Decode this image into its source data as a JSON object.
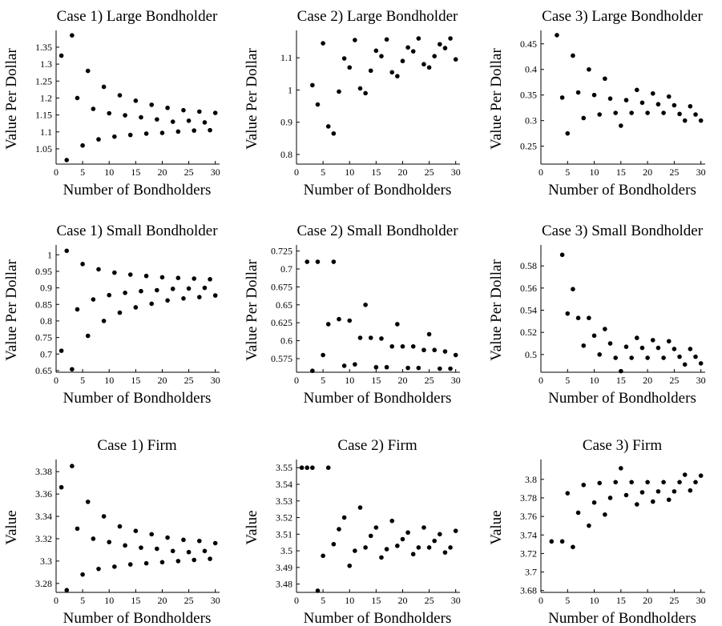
{
  "chart_data": [
    {
      "type": "scatter",
      "title": "Case 1) Large Bondholder",
      "xlabel": "Number of Bondholders",
      "ylabel": "Value Per Dollar",
      "xlim": [
        0,
        30.5
      ],
      "ylim": [
        1.005,
        1.39
      ],
      "xticks": [
        0,
        5,
        10,
        15,
        20,
        25,
        30
      ],
      "yticks": [
        1.05,
        1.1,
        1.15,
        1.2,
        1.25,
        1.3,
        1.35
      ],
      "ytick_labels": [
        "1.05",
        "1.1",
        "1.15",
        "1.2",
        "1.25",
        "1.3",
        "1.35"
      ],
      "points": [
        [
          1,
          1.325
        ],
        [
          2,
          1.017
        ],
        [
          3,
          1.385
        ],
        [
          4,
          1.2
        ],
        [
          5,
          1.06
        ],
        [
          6,
          1.28
        ],
        [
          7,
          1.168
        ],
        [
          8,
          1.078
        ],
        [
          9,
          1.233
        ],
        [
          10,
          1.155
        ],
        [
          11,
          1.086
        ],
        [
          12,
          1.208
        ],
        [
          13,
          1.149
        ],
        [
          14,
          1.091
        ],
        [
          15,
          1.192
        ],
        [
          16,
          1.143
        ],
        [
          17,
          1.095
        ],
        [
          18,
          1.18
        ],
        [
          19,
          1.137
        ],
        [
          20,
          1.097
        ],
        [
          21,
          1.171
        ],
        [
          22,
          1.13
        ],
        [
          23,
          1.101
        ],
        [
          24,
          1.164
        ],
        [
          25,
          1.133
        ],
        [
          26,
          1.104
        ],
        [
          27,
          1.16
        ],
        [
          28,
          1.128
        ],
        [
          29,
          1.105
        ],
        [
          30,
          1.156
        ]
      ]
    },
    {
      "type": "scatter",
      "title": "Case 2) Large Bondholder",
      "xlabel": "Number of Bondholders",
      "ylabel": "Value Per Dollar",
      "xlim": [
        0,
        30.5
      ],
      "ylim": [
        0.77,
        1.175
      ],
      "xticks": [
        0,
        5,
        10,
        15,
        20,
        25,
        30
      ],
      "yticks": [
        0.8,
        0.9,
        1.0,
        1.1
      ],
      "ytick_labels": [
        "0.8",
        "0.9",
        "1",
        "1.1"
      ],
      "points": [
        [
          3,
          1.015
        ],
        [
          4,
          0.955
        ],
        [
          5,
          1.145
        ],
        [
          6,
          0.887
        ],
        [
          7,
          0.865
        ],
        [
          8,
          0.995
        ],
        [
          9,
          1.098
        ],
        [
          10,
          1.07
        ],
        [
          11,
          1.155
        ],
        [
          12,
          1.005
        ],
        [
          13,
          0.99
        ],
        [
          14,
          1.06
        ],
        [
          15,
          1.122
        ],
        [
          16,
          1.105
        ],
        [
          17,
          1.157
        ],
        [
          18,
          1.055
        ],
        [
          19,
          1.043
        ],
        [
          20,
          1.09
        ],
        [
          21,
          1.132
        ],
        [
          22,
          1.12
        ],
        [
          23,
          1.16
        ],
        [
          24,
          1.08
        ],
        [
          25,
          1.07
        ],
        [
          26,
          1.105
        ],
        [
          27,
          1.142
        ],
        [
          28,
          1.13
        ],
        [
          29,
          1.16
        ],
        [
          30,
          1.095
        ]
      ]
    },
    {
      "type": "scatter",
      "title": "Case 3) Large Bondholder",
      "xlabel": "Number of Bondholders",
      "ylabel": "Value Per Dollar",
      "xlim": [
        0,
        30.5
      ],
      "ylim": [
        0.215,
        0.47
      ],
      "xticks": [
        0,
        5,
        10,
        15,
        20,
        25,
        30
      ],
      "yticks": [
        0.25,
        0.3,
        0.35,
        0.4,
        0.45
      ],
      "ytick_labels": [
        "0.25",
        "0.3",
        "0.35",
        "0.4",
        "0.45"
      ],
      "points": [
        [
          3,
          0.467
        ],
        [
          4,
          0.345
        ],
        [
          5,
          0.275
        ],
        [
          6,
          0.427
        ],
        [
          7,
          0.355
        ],
        [
          8,
          0.305
        ],
        [
          9,
          0.4
        ],
        [
          10,
          0.35
        ],
        [
          11,
          0.312
        ],
        [
          12,
          0.382
        ],
        [
          13,
          0.343
        ],
        [
          14,
          0.315
        ],
        [
          15,
          0.29
        ],
        [
          16,
          0.34
        ],
        [
          17,
          0.315
        ],
        [
          18,
          0.36
        ],
        [
          19,
          0.335
        ],
        [
          20,
          0.315
        ],
        [
          21,
          0.353
        ],
        [
          22,
          0.332
        ],
        [
          23,
          0.315
        ],
        [
          24,
          0.347
        ],
        [
          25,
          0.33
        ],
        [
          26,
          0.313
        ],
        [
          27,
          0.3
        ],
        [
          28,
          0.328
        ],
        [
          29,
          0.312
        ],
        [
          30,
          0.3
        ]
      ]
    },
    {
      "type": "scatter",
      "title": "Case 1) Small Bondholder",
      "xlabel": "Number of Bondholders",
      "ylabel": "Value Per Dollar",
      "xlim": [
        0,
        30.5
      ],
      "ylim": [
        0.645,
        1.02
      ],
      "xticks": [
        0,
        5,
        10,
        15,
        20,
        25,
        30
      ],
      "yticks": [
        0.65,
        0.7,
        0.75,
        0.8,
        0.85,
        0.9,
        0.95,
        1.0
      ],
      "ytick_labels": [
        "0.65",
        "0.7",
        "0.75",
        "0.8",
        "0.85",
        "0.9",
        "0.95",
        "1"
      ],
      "points": [
        [
          1,
          0.71
        ],
        [
          2,
          1.012
        ],
        [
          3,
          0.654
        ],
        [
          4,
          0.835
        ],
        [
          5,
          0.972
        ],
        [
          6,
          0.755
        ],
        [
          7,
          0.865
        ],
        [
          8,
          0.956
        ],
        [
          9,
          0.8
        ],
        [
          10,
          0.878
        ],
        [
          11,
          0.946
        ],
        [
          12,
          0.825
        ],
        [
          13,
          0.885
        ],
        [
          14,
          0.94
        ],
        [
          15,
          0.841
        ],
        [
          16,
          0.89
        ],
        [
          17,
          0.936
        ],
        [
          18,
          0.852
        ],
        [
          19,
          0.893
        ],
        [
          20,
          0.932
        ],
        [
          21,
          0.862
        ],
        [
          22,
          0.897
        ],
        [
          23,
          0.93
        ],
        [
          24,
          0.868
        ],
        [
          25,
          0.898
        ],
        [
          26,
          0.928
        ],
        [
          27,
          0.872
        ],
        [
          28,
          0.9
        ],
        [
          29,
          0.926
        ],
        [
          30,
          0.877
        ]
      ]
    },
    {
      "type": "scatter",
      "title": "Case 2) Small Bondholder",
      "xlabel": "Number of Bondholders",
      "ylabel": "Value Per Dollar",
      "xlim": [
        0,
        30.5
      ],
      "ylim": [
        0.556,
        0.729
      ],
      "xticks": [
        0,
        5,
        10,
        15,
        20,
        25,
        30
      ],
      "yticks": [
        0.575,
        0.6,
        0.625,
        0.65,
        0.675,
        0.7,
        0.725
      ],
      "ytick_labels": [
        "0.575",
        "0.6",
        "0.625",
        "0.65",
        "0.675",
        "0.7",
        "0.725"
      ],
      "points": [
        [
          2,
          0.71
        ],
        [
          3,
          0.558
        ],
        [
          4,
          0.71
        ],
        [
          5,
          0.58
        ],
        [
          6,
          0.623
        ],
        [
          7,
          0.71
        ],
        [
          8,
          0.63
        ],
        [
          9,
          0.565
        ],
        [
          10,
          0.628
        ],
        [
          11,
          0.567
        ],
        [
          12,
          0.604
        ],
        [
          13,
          0.65
        ],
        [
          14,
          0.604
        ],
        [
          15,
          0.563
        ],
        [
          16,
          0.603
        ],
        [
          17,
          0.563
        ],
        [
          18,
          0.592
        ],
        [
          19,
          0.623
        ],
        [
          20,
          0.592
        ],
        [
          21,
          0.562
        ],
        [
          22,
          0.592
        ],
        [
          23,
          0.562
        ],
        [
          24,
          0.587
        ],
        [
          25,
          0.609
        ],
        [
          26,
          0.587
        ],
        [
          27,
          0.561
        ],
        [
          28,
          0.585
        ],
        [
          29,
          0.561
        ],
        [
          30,
          0.58
        ]
      ]
    },
    {
      "type": "scatter",
      "title": "Case 3) Small Bondholder",
      "xlabel": "Number of Bondholders",
      "ylabel": "Value Per Dollar",
      "xlim": [
        0,
        30.5
      ],
      "ylim": [
        0.484,
        0.596
      ],
      "xticks": [
        0,
        5,
        10,
        15,
        20,
        25,
        30
      ],
      "yticks": [
        0.5,
        0.52,
        0.54,
        0.56,
        0.58
      ],
      "ytick_labels": [
        "0.5",
        "0.52",
        "0.54",
        "0.56",
        "0.58"
      ],
      "points": [
        [
          4,
          0.59
        ],
        [
          5,
          0.537
        ],
        [
          6,
          0.559
        ],
        [
          7,
          0.533
        ],
        [
          8,
          0.508
        ],
        [
          9,
          0.533
        ],
        [
          10,
          0.517
        ],
        [
          11,
          0.5
        ],
        [
          12,
          0.523
        ],
        [
          13,
          0.51
        ],
        [
          14,
          0.497
        ],
        [
          15,
          0.485
        ],
        [
          16,
          0.507
        ],
        [
          17,
          0.497
        ],
        [
          18,
          0.515
        ],
        [
          19,
          0.506
        ],
        [
          20,
          0.497
        ],
        [
          21,
          0.513
        ],
        [
          22,
          0.506
        ],
        [
          23,
          0.497
        ],
        [
          24,
          0.512
        ],
        [
          25,
          0.505
        ],
        [
          26,
          0.498
        ],
        [
          27,
          0.491
        ],
        [
          28,
          0.505
        ],
        [
          29,
          0.498
        ],
        [
          30,
          0.492
        ]
      ]
    },
    {
      "type": "scatter",
      "title": "Case 1) Firm",
      "xlabel": "Number of Bondholders",
      "ylabel": "Value",
      "xlim": [
        0,
        30.5
      ],
      "ylim": [
        3.272,
        3.388
      ],
      "xticks": [
        0,
        5,
        10,
        15,
        20,
        25,
        30
      ],
      "yticks": [
        3.28,
        3.3,
        3.32,
        3.34,
        3.36,
        3.38
      ],
      "ytick_labels": [
        "3.28",
        "3.3",
        "3.32",
        "3.34",
        "3.36",
        "3.38"
      ],
      "points": [
        [
          1,
          3.366
        ],
        [
          2,
          3.274
        ],
        [
          3,
          3.385
        ],
        [
          4,
          3.329
        ],
        [
          5,
          3.288
        ],
        [
          6,
          3.353
        ],
        [
          7,
          3.32
        ],
        [
          8,
          3.293
        ],
        [
          9,
          3.34
        ],
        [
          10,
          3.317
        ],
        [
          11,
          3.295
        ],
        [
          12,
          3.331
        ],
        [
          13,
          3.314
        ],
        [
          14,
          3.297
        ],
        [
          15,
          3.327
        ],
        [
          16,
          3.312
        ],
        [
          17,
          3.298
        ],
        [
          18,
          3.324
        ],
        [
          19,
          3.311
        ],
        [
          20,
          3.299
        ],
        [
          21,
          3.321
        ],
        [
          22,
          3.309
        ],
        [
          23,
          3.3
        ],
        [
          24,
          3.319
        ],
        [
          25,
          3.308
        ],
        [
          26,
          3.301
        ],
        [
          27,
          3.318
        ],
        [
          28,
          3.309
        ],
        [
          29,
          3.302
        ],
        [
          30,
          3.316
        ]
      ]
    },
    {
      "type": "scatter",
      "title": "Case 2) Firm",
      "xlabel": "Number of Bondholders",
      "ylabel": "Value",
      "xlim": [
        0,
        30.5
      ],
      "ylim": [
        3.475,
        3.553
      ],
      "xticks": [
        0,
        5,
        10,
        15,
        20,
        25,
        30
      ],
      "yticks": [
        3.48,
        3.49,
        3.5,
        3.51,
        3.52,
        3.53,
        3.54,
        3.55
      ],
      "ytick_labels": [
        "3.48",
        "3.49",
        "3.5",
        "3.51",
        "3.52",
        "3.53",
        "3.54",
        "3.55"
      ],
      "points": [
        [
          1,
          3.55
        ],
        [
          2,
          3.55
        ],
        [
          3,
          3.55
        ],
        [
          4,
          3.476
        ],
        [
          5,
          3.497
        ],
        [
          6,
          3.55
        ],
        [
          7,
          3.504
        ],
        [
          8,
          3.513
        ],
        [
          9,
          3.52
        ],
        [
          10,
          3.491
        ],
        [
          11,
          3.5
        ],
        [
          12,
          3.526
        ],
        [
          13,
          3.502
        ],
        [
          14,
          3.509
        ],
        [
          15,
          3.514
        ],
        [
          16,
          3.496
        ],
        [
          17,
          3.501
        ],
        [
          18,
          3.518
        ],
        [
          19,
          3.503
        ],
        [
          20,
          3.507
        ],
        [
          21,
          3.511
        ],
        [
          22,
          3.498
        ],
        [
          23,
          3.502
        ],
        [
          24,
          3.514
        ],
        [
          25,
          3.502
        ],
        [
          26,
          3.506
        ],
        [
          27,
          3.51
        ],
        [
          28,
          3.499
        ],
        [
          29,
          3.502
        ],
        [
          30,
          3.512
        ]
      ]
    },
    {
      "type": "scatter",
      "title": "Case 3) Firm",
      "xlabel": "Number of Bondholders",
      "ylabel": "Value",
      "xlim": [
        0,
        30.5
      ],
      "ylim": [
        3.678,
        3.818
      ],
      "xticks": [
        0,
        5,
        10,
        15,
        20,
        25,
        30
      ],
      "yticks": [
        3.68,
        3.7,
        3.72,
        3.74,
        3.76,
        3.78,
        3.8
      ],
      "ytick_labels": [
        "3.68",
        "3.7",
        "3.72",
        "3.74",
        "3.76",
        "3.78",
        "3.8"
      ],
      "points": [
        [
          2,
          3.733
        ],
        [
          4,
          3.733
        ],
        [
          5,
          3.785
        ],
        [
          6,
          3.727
        ],
        [
          7,
          3.764
        ],
        [
          8,
          3.794
        ],
        [
          9,
          3.75
        ],
        [
          10,
          3.775
        ],
        [
          11,
          3.796
        ],
        [
          12,
          3.762
        ],
        [
          13,
          3.78
        ],
        [
          14,
          3.797
        ],
        [
          15,
          3.812
        ],
        [
          16,
          3.783
        ],
        [
          17,
          3.797
        ],
        [
          18,
          3.773
        ],
        [
          19,
          3.786
        ],
        [
          20,
          3.797
        ],
        [
          21,
          3.776
        ],
        [
          22,
          3.787
        ],
        [
          23,
          3.797
        ],
        [
          24,
          3.778
        ],
        [
          25,
          3.787
        ],
        [
          26,
          3.797
        ],
        [
          27,
          3.805
        ],
        [
          28,
          3.788
        ],
        [
          29,
          3.797
        ],
        [
          30,
          3.804
        ]
      ]
    }
  ]
}
